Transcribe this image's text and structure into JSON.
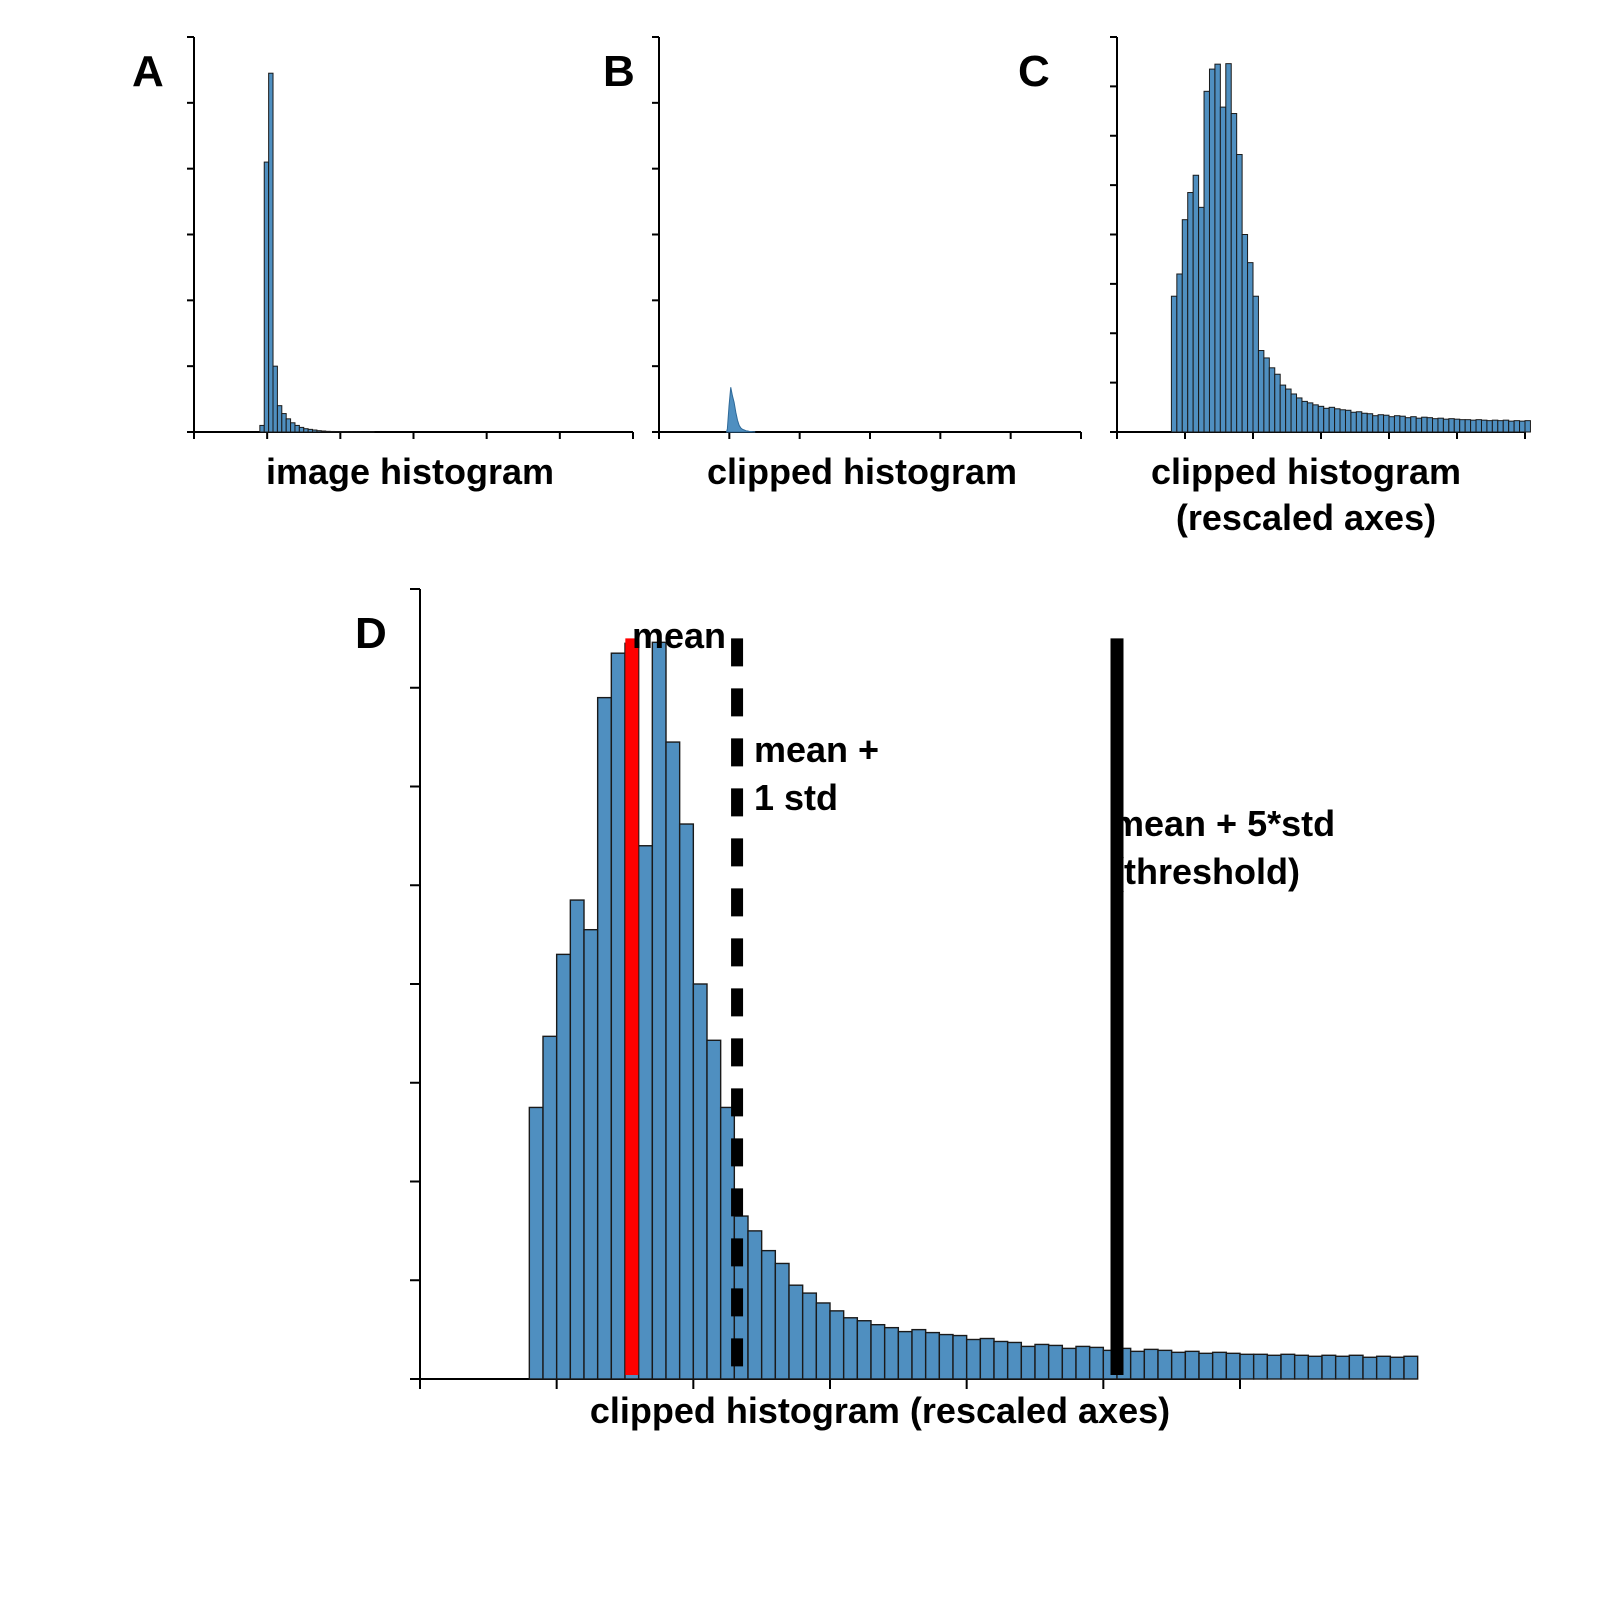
{
  "colors": {
    "bar_fill": "#4f8fc0",
    "bar_edge": "#1a1a1a",
    "mean_line": "#ff0000",
    "std_line": "#000000",
    "threshold_line": "#000000"
  },
  "chart_data": [
    {
      "panel": "A",
      "type": "bar",
      "title": "",
      "xlabel": "image histogram",
      "ylabel": "",
      "xlim": [
        0,
        30
      ],
      "ylim": [
        0,
        6
      ],
      "x_tick_count": 7,
      "y_tick_count": 6,
      "bin_start": 4.5,
      "bin_width": 0.3,
      "values": [
        0.1,
        4.1,
        5.45,
        1.0,
        0.4,
        0.28,
        0.2,
        0.14,
        0.1,
        0.07,
        0.05,
        0.04,
        0.03,
        0.02,
        0.015,
        0.01,
        0.008,
        0.006,
        0.005,
        0.004,
        0.003,
        0.002,
        0.002,
        0.001,
        0.001,
        0.001
      ],
      "annotations": []
    },
    {
      "panel": "B",
      "type": "area",
      "title": "",
      "xlabel": "clipped histogram",
      "ylabel": "",
      "xlim": [
        0,
        30
      ],
      "ylim": [
        0,
        6
      ],
      "x_tick_count": 7,
      "y_tick_count": 6,
      "bin_start": 4.8,
      "bin_width": 0.12,
      "values": [
        0.05,
        0.4,
        0.68,
        0.55,
        0.45,
        0.3,
        0.18,
        0.1,
        0.06,
        0.04,
        0.03,
        0.02,
        0.015,
        0.01,
        0.008,
        0.005,
        0.003
      ],
      "annotations": []
    },
    {
      "panel": "C",
      "type": "bar",
      "title": "",
      "xlabel": "clipped histogram",
      "xlabel_line2": "(rescaled axes)",
      "ylabel": "",
      "xlim": [
        0,
        30
      ],
      "ylim": [
        0,
        8
      ],
      "x_tick_count": 7,
      "y_tick_count": 8,
      "bin_start": 4.0,
      "bin_width": 0.4,
      "values": [
        2.75,
        3.2,
        4.3,
        4.85,
        5.2,
        4.55,
        6.9,
        7.35,
        7.45,
        6.58,
        7.46,
        6.45,
        5.62,
        4.0,
        3.43,
        2.75,
        1.65,
        1.5,
        1.3,
        1.17,
        0.95,
        0.87,
        0.77,
        0.69,
        0.62,
        0.59,
        0.55,
        0.52,
        0.48,
        0.5,
        0.47,
        0.45,
        0.44,
        0.4,
        0.41,
        0.38,
        0.37,
        0.33,
        0.35,
        0.34,
        0.31,
        0.33,
        0.32,
        0.29,
        0.31,
        0.28,
        0.3,
        0.29,
        0.27,
        0.28,
        0.26,
        0.27,
        0.26,
        0.25,
        0.25,
        0.24,
        0.25,
        0.24,
        0.23,
        0.24,
        0.23,
        0.24,
        0.22,
        0.23,
        0.22,
        0.23
      ],
      "annotations": []
    },
    {
      "panel": "D",
      "type": "bar",
      "title": "",
      "xlabel": "clipped histogram (rescaled axes)",
      "ylabel": "",
      "xlim": [
        0,
        30
      ],
      "ylim": [
        0,
        8
      ],
      "x_tick_count": 7,
      "y_tick_count": 8,
      "bin_start": 4.0,
      "bin_width": 0.5,
      "values": [
        2.75,
        3.47,
        4.3,
        4.85,
        4.55,
        6.9,
        7.35,
        7.45,
        5.4,
        7.46,
        6.45,
        5.62,
        4.0,
        3.43,
        2.75,
        1.65,
        1.5,
        1.3,
        1.17,
        0.95,
        0.87,
        0.77,
        0.69,
        0.62,
        0.59,
        0.55,
        0.52,
        0.48,
        0.5,
        0.47,
        0.45,
        0.44,
        0.4,
        0.41,
        0.38,
        0.37,
        0.33,
        0.35,
        0.34,
        0.31,
        0.33,
        0.32,
        0.29,
        0.31,
        0.28,
        0.3,
        0.29,
        0.27,
        0.28,
        0.26,
        0.27,
        0.26,
        0.25,
        0.25,
        0.24,
        0.25,
        0.24,
        0.23,
        0.24,
        0.23,
        0.24,
        0.22,
        0.23,
        0.22,
        0.23
      ],
      "annotations": [
        {
          "label": "mean",
          "x": 7.75,
          "y_top": 7.5,
          "style": "solid",
          "color": "#ff0000"
        },
        {
          "label": "mean +",
          "label_line2": "1 std",
          "x": 11.6,
          "y_top": 7.5,
          "style": "dashed",
          "color": "#000000"
        },
        {
          "label": "mean + 5*std",
          "label_line2": "(threshold)",
          "x": 25.5,
          "y_top": 7.5,
          "style": "solid",
          "color": "#000000"
        }
      ]
    }
  ]
}
